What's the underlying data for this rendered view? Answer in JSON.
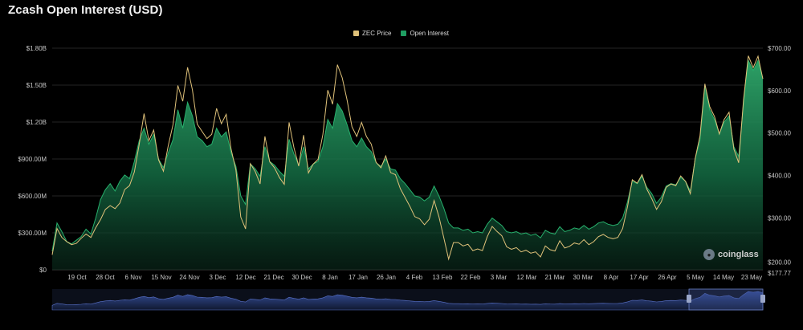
{
  "title": "Zcash Open Interest (USD)",
  "brand": "coinglass",
  "colors": {
    "price": "#e0c27a",
    "oi": "#1f9e62",
    "grid": "#2a2a2a",
    "navigator": "#2c3f7a"
  },
  "chart_data": {
    "type": "area",
    "title": "Zcash Open Interest (USD)",
    "x_ticks": [
      "19 Oct",
      "28 Oct",
      "6 Nov",
      "15 Nov",
      "24 Nov",
      "3 Dec",
      "12 Dec",
      "21 Dec",
      "30 Dec",
      "8 Jan",
      "17 Jan",
      "26 Jan",
      "4 Feb",
      "13 Feb",
      "22 Feb",
      "3 Mar",
      "12 Mar",
      "21 Mar",
      "30 Mar",
      "8 Apr",
      "17 Apr",
      "26 Apr",
      "5 May",
      "14 May",
      "23 May"
    ],
    "y_left_ticks": [
      "$0",
      "$300.00M",
      "$600.00M",
      "$900.00M",
      "$1.20B",
      "$1.50B",
      "$1.80B"
    ],
    "y_left_range": [
      0,
      1800
    ],
    "y_right_ticks": [
      "$177.77",
      "$200.00",
      "$300.00",
      "$400.00",
      "$500.00",
      "$600.00",
      "$700.00"
    ],
    "y_right_range": [
      177.77,
      700
    ],
    "legend": [
      "ZEC Price",
      "Open Interest"
    ],
    "series": [
      {
        "name": "Open Interest",
        "axis": "left",
        "values": [
          150,
          380,
          310,
          230,
          210,
          240,
          270,
          330,
          290,
          420,
          570,
          650,
          700,
          640,
          720,
          770,
          740,
          880,
          1050,
          1150,
          1020,
          1100,
          900,
          830,
          950,
          1060,
          1300,
          1150,
          1360,
          1250,
          1080,
          1050,
          1000,
          1020,
          1150,
          1080,
          1120,
          950,
          840,
          600,
          530,
          860,
          820,
          760,
          1000,
          880,
          850,
          800,
          760,
          1060,
          940,
          850,
          1000,
          820,
          860,
          880,
          1000,
          1220,
          1150,
          1350,
          1290,
          1180,
          1050,
          1000,
          1070,
          1000,
          960,
          870,
          840,
          900,
          820,
          810,
          740,
          700,
          650,
          600,
          590,
          560,
          590,
          680,
          600,
          500,
          380,
          340,
          340,
          320,
          330,
          300,
          310,
          300,
          370,
          420,
          390,
          360,
          310,
          300,
          310,
          290,
          300,
          280,
          290,
          260,
          320,
          300,
          290,
          350,
          310,
          320,
          340,
          330,
          360,
          330,
          350,
          380,
          390,
          370,
          360,
          370,
          420,
          550,
          720,
          700,
          760,
          670,
          620,
          540,
          590,
          680,
          700,
          690,
          750,
          720,
          640,
          900,
          1050,
          1500,
          1300,
          1220,
          1100,
          1200,
          1250,
          1000,
          920,
          1350,
          1700,
          1620,
          1700,
          1550
        ]
      },
      {
        "name": "ZEC Price",
        "axis": "right",
        "values": [
          213,
          275,
          254,
          244,
          237,
          240,
          252,
          262,
          254,
          277,
          296,
          320,
          329,
          322,
          335,
          367,
          376,
          408,
          474,
          546,
          482,
          507,
          437,
          410,
          470,
          520,
          612,
          575,
          655,
          602,
          521,
          504,
          487,
          497,
          558,
          522,
          544,
          462,
          413,
          302,
          274,
          428,
          409,
          380,
          492,
          432,
          418,
          395,
          379,
          525,
          466,
          422,
          495,
          406,
          427,
          438,
          497,
          601,
          568,
          661,
          630,
          578,
          515,
          492,
          525,
          492,
          474,
          431,
          418,
          446,
          407,
          402,
          369,
          348,
          327,
          303,
          298,
          284,
          297,
          341,
          303,
          253,
          203,
          242,
          242,
          234,
          238,
          223,
          227,
          223,
          256,
          280,
          268,
          258,
          232,
          226,
          230,
          220,
          224,
          217,
          220,
          208,
          234,
          225,
          222,
          246,
          229,
          233,
          241,
          238,
          249,
          237,
          244,
          256,
          261,
          254,
          251,
          254,
          275,
          326,
          390,
          382,
          402,
          368,
          346,
          320,
          338,
          372,
          380,
          376,
          399,
          386,
          357,
          440,
          493,
          616,
          562,
          539,
          498,
          532,
          549,
          462,
          430,
          578,
          682,
          654,
          681,
          628
        ]
      }
    ]
  }
}
